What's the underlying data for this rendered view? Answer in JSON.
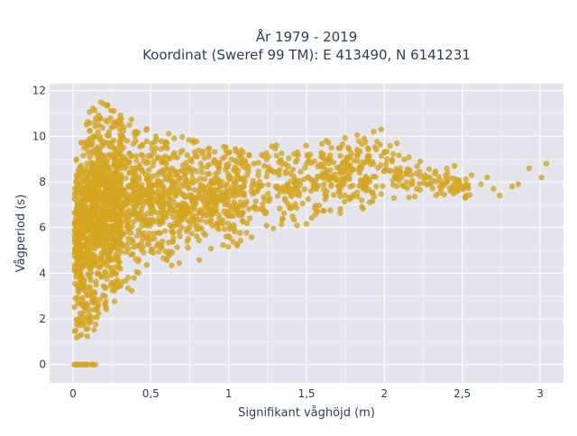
{
  "chart_data": {
    "type": "scatter",
    "title_line1": "År 1979 - 2019",
    "title_line2": "Koordinat (Sweref 99 TM): E 413490, N 6141231",
    "xlabel": "Signifikant våghöjd (m)",
    "ylabel": "Vågperiod (s)",
    "xlim": [
      -0.15,
      3.15
    ],
    "ylim": [
      -0.8,
      12.3
    ],
    "xticks": [
      0,
      0.5,
      1,
      1.5,
      2,
      2.5,
      3
    ],
    "xtick_labels": [
      "0",
      "0,5",
      "1",
      "1,5",
      "2",
      "2,5",
      "3"
    ],
    "yticks": [
      0,
      2,
      4,
      6,
      8,
      10,
      12
    ],
    "ytick_labels": [
      "0",
      "2",
      "4",
      "6",
      "8",
      "10",
      "12"
    ],
    "grid": true,
    "legend": "none",
    "marker_color": "#d4a520",
    "background_color": "#e5e5ee",
    "point_summary": {
      "bands": [
        {
          "x": 0.0,
          "y_min": 0.0,
          "y_max": 0.0
        },
        {
          "x": 0.02,
          "y_min": 1.1,
          "y_max": 9.0
        },
        {
          "x": 0.1,
          "y_min": 1.1,
          "y_max": 11.2
        },
        {
          "x": 0.2,
          "y_min": 2.2,
          "y_max": 11.6
        },
        {
          "x": 0.5,
          "y_min": 3.8,
          "y_max": 10.3
        },
        {
          "x": 1.0,
          "y_min": 5.0,
          "y_max": 9.6
        },
        {
          "x": 1.5,
          "y_min": 6.0,
          "y_max": 9.8
        },
        {
          "x": 2.0,
          "y_min": 6.8,
          "y_max": 10.2
        },
        {
          "x": 2.5,
          "y_min": 7.2,
          "y_max": 8.2
        },
        {
          "x": 3.0,
          "y_min": 7.9,
          "y_max": 9.0
        }
      ],
      "outliers": [
        {
          "x": 2.74,
          "y": 7.4
        },
        {
          "x": 2.82,
          "y": 7.8
        },
        {
          "x": 2.93,
          "y": 8.6
        },
        {
          "x": 3.04,
          "y": 8.8
        },
        {
          "x": 3.01,
          "y": 8.2
        },
        {
          "x": 2.86,
          "y": 7.9
        },
        {
          "x": 2.66,
          "y": 8.2
        },
        {
          "x": 2.56,
          "y": 8.3
        },
        {
          "x": 2.45,
          "y": 8.7
        },
        {
          "x": 2.23,
          "y": 8.9
        },
        {
          "x": 1.93,
          "y": 10.2
        },
        {
          "x": 2.05,
          "y": 8.9
        },
        {
          "x": 1.98,
          "y": 10.3
        },
        {
          "x": 2.62,
          "y": 7.9
        },
        {
          "x": 2.7,
          "y": 7.7
        },
        {
          "x": 2.52,
          "y": 7.3
        },
        {
          "x": 2.45,
          "y": 7.6
        }
      ]
    }
  }
}
